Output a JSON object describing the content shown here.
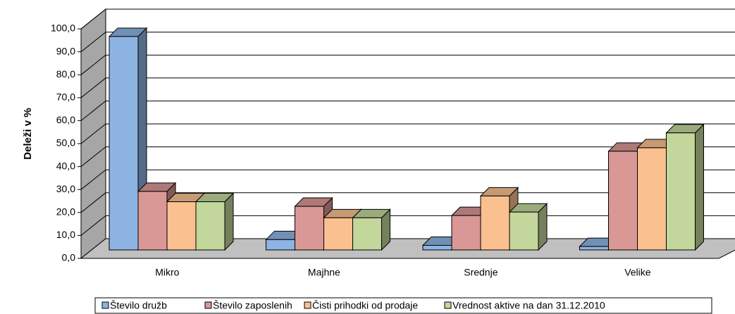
{
  "chart_data": {
    "type": "bar3d",
    "y_label": "Deleži v %",
    "categories": [
      "Mikro",
      "Majhne",
      "Srednje",
      "Velike"
    ],
    "series": [
      {
        "name": "Število družb",
        "color": "#8db4e2",
        "values": [
          93.0,
          4.5,
          2.0,
          1.5
        ]
      },
      {
        "name": "Število zaposlenih",
        "color": "#d99795",
        "values": [
          25.5,
          19.0,
          15.0,
          43.0
        ]
      },
      {
        "name": "Čisti prihodki od prodaje",
        "color": "#fac090",
        "values": [
          21.0,
          14.0,
          23.5,
          44.5
        ]
      },
      {
        "name": "Vrednost aktive na dan 31.12.2010",
        "color": "#c3d69b",
        "values": [
          21.0,
          14.0,
          16.5,
          51.0
        ]
      }
    ],
    "ylim": [
      0,
      100
    ],
    "yticks": [
      {
        "value": 0,
        "label": "0,0"
      },
      {
        "value": 10,
        "label": "10,0"
      },
      {
        "value": 20,
        "label": "20,0"
      },
      {
        "value": 30,
        "label": "30,0"
      },
      {
        "value": 40,
        "label": "40,0"
      },
      {
        "value": 50,
        "label": "50,0"
      },
      {
        "value": 60,
        "label": "60,0"
      },
      {
        "value": 70,
        "label": "70,0"
      },
      {
        "value": 80,
        "label": "80,0"
      },
      {
        "value": 90,
        "label": "90,0"
      },
      {
        "value": 100,
        "label": "100,0"
      }
    ],
    "grid": true
  }
}
